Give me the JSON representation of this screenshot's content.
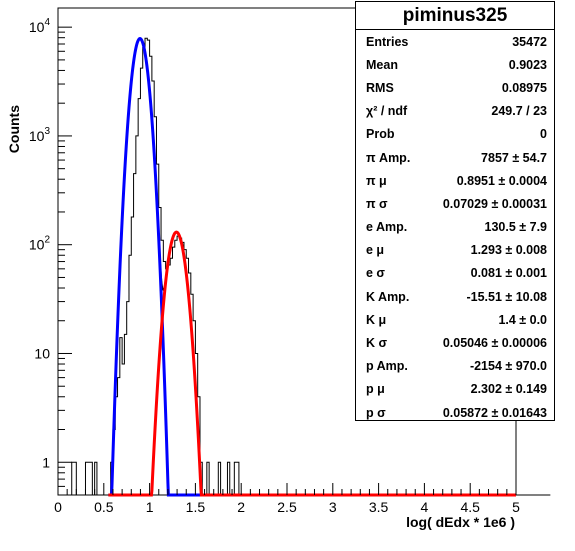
{
  "chart_data": {
    "type": "histogram",
    "title": "piminus325",
    "xlabel": "log( dEdx * 1e6 )",
    "ylabel": "Counts",
    "xlim": [
      0,
      5
    ],
    "ylim": [
      0.5,
      15000
    ],
    "yscale": "log",
    "xticks": [
      "0",
      "0.5",
      "1",
      "1.5",
      "2",
      "2.5",
      "3",
      "3.5",
      "4",
      "4.5",
      "5"
    ],
    "yticks": [
      {
        "value": 1,
        "base": "1",
        "exp": ""
      },
      {
        "value": 10,
        "base": "10",
        "exp": ""
      },
      {
        "value": 100,
        "base": "10",
        "exp": "2"
      },
      {
        "value": 1000,
        "base": "10",
        "exp": "3"
      },
      {
        "value": 10000,
        "base": "10",
        "exp": "4"
      }
    ],
    "histogram": {
      "bin_edges_start": 0.15,
      "bin_width": 0.025,
      "counts": [
        1,
        1,
        0,
        0,
        0,
        0,
        1,
        1,
        1,
        0,
        1,
        0,
        0,
        0,
        0,
        0,
        0,
        1,
        2,
        4,
        6,
        14,
        8,
        15,
        30,
        80,
        180,
        450,
        1000,
        2200,
        4200,
        6500,
        7900,
        7600,
        5400,
        3200,
        1500,
        550,
        220,
        110,
        70,
        60,
        65,
        75,
        95,
        110,
        120,
        115,
        105,
        90,
        75,
        55,
        35,
        20,
        10,
        4,
        1,
        0,
        0,
        1,
        0,
        0,
        0,
        0,
        1,
        0,
        0,
        0,
        1,
        0,
        0,
        1,
        1,
        0,
        0,
        0,
        0,
        0,
        0,
        0,
        0,
        0,
        0,
        0,
        0,
        0,
        0,
        0,
        0,
        0,
        0,
        0,
        0,
        0,
        0,
        0,
        0,
        0,
        0,
        0,
        0,
        0,
        0,
        0,
        0,
        0,
        0,
        0,
        0,
        0,
        0,
        0,
        0,
        0,
        0,
        0,
        0,
        0,
        0,
        0,
        0,
        0,
        0,
        0,
        0,
        0,
        0,
        0,
        0,
        0,
        0,
        0,
        0,
        0,
        0,
        0,
        0,
        0,
        0,
        0,
        0,
        0,
        0,
        0,
        0,
        0,
        0,
        0,
        0,
        0,
        0,
        0,
        0,
        0,
        0,
        0,
        0,
        0,
        0,
        0,
        0,
        0,
        0,
        0,
        0,
        0,
        0,
        0,
        0,
        0,
        0,
        0,
        0,
        0,
        0,
        0,
        0,
        0,
        0,
        0,
        0,
        0,
        0,
        0,
        0,
        0,
        0,
        0,
        0,
        0,
        0,
        0,
        0,
        0,
        0,
        0,
        0,
        0,
        0,
        0,
        0,
        0,
        0,
        0,
        0,
        0,
        0,
        0,
        0
      ]
    },
    "fits": [
      {
        "color": "#0000ff",
        "amp": 7857,
        "mu": 0.8951,
        "sigma": 0.07029
      },
      {
        "color": "#ff0000",
        "amp": 130.5,
        "mu": 1.293,
        "sigma": 0.081
      }
    ],
    "total_color": "#000000"
  },
  "stats": {
    "title": "piminus325",
    "rows": [
      {
        "label": "Entries",
        "value": "35472"
      },
      {
        "label": "Mean",
        "value": "0.9023"
      },
      {
        "label": "RMS",
        "value": "0.08975"
      },
      {
        "label": "χ² / ndf",
        "value": "249.7 / 23"
      },
      {
        "label": "Prob",
        "value": "0"
      },
      {
        "label": "π Amp.",
        "value": "7857 ± 54.7"
      },
      {
        "label": "π μ",
        "value": "0.8951 ± 0.0004"
      },
      {
        "label": "π σ",
        "value": "0.07029 ± 0.00031"
      },
      {
        "label": "e Amp.",
        "value": "130.5 ± 7.9"
      },
      {
        "label": "e μ",
        "value": "1.293 ± 0.008"
      },
      {
        "label": "e σ",
        "value": "0.081 ± 0.001"
      },
      {
        "label": "K Amp.",
        "value": "-15.51 ± 10.08"
      },
      {
        "label": "K μ",
        "value": "1.4 ± 0.0"
      },
      {
        "label": "K σ",
        "value": "0.05046 ± 0.00006"
      },
      {
        "label": "p Amp.",
        "value": "-2154 ± 970.0"
      },
      {
        "label": "p μ",
        "value": "2.302 ± 0.149"
      },
      {
        "label": "p σ",
        "value": "0.05872 ± 0.01643"
      }
    ]
  }
}
